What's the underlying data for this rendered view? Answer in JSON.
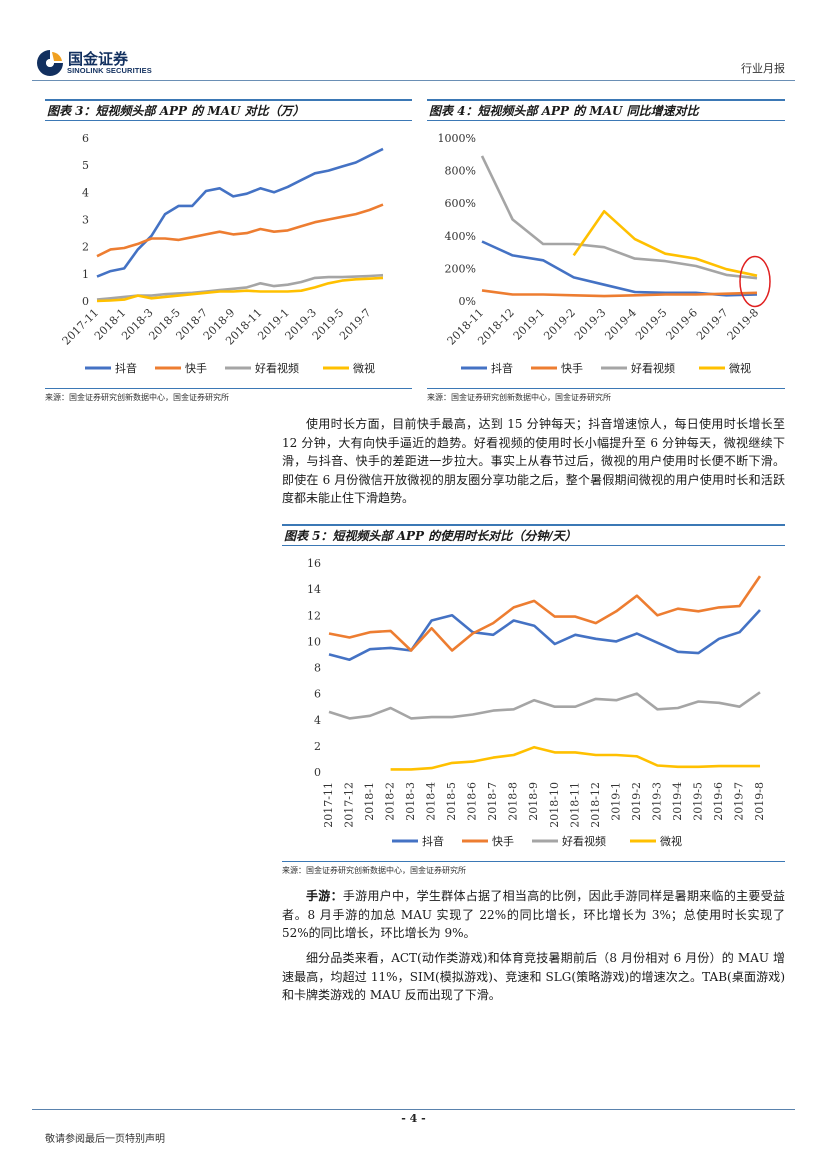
{
  "header": {
    "logo_cn": "国金证券",
    "logo_en": "SINOLINK SECURITIES",
    "report_type": "行业月报"
  },
  "footer": {
    "page_number": "- 4 -",
    "disclaimer": "敬请参阅最后一页特别声明"
  },
  "colors": {
    "blue": "#4472C4",
    "orange": "#ED7D31",
    "gray": "#A5A5A5",
    "yellow": "#FFC000",
    "rule": "#3b78b5",
    "highlight": "#e02020"
  },
  "body": {
    "para1": "使用时长方面，目前快手最高，达到 15 分钟每天；抖音增速惊人，每日使用时长增长至 12 分钟，大有向快手逼近的趋势。好看视频的使用时长小幅提升至 6 分钟每天，微视继续下滑，与抖音、快手的差距进一步拉大。事实上从春节过后，微视的用户使用时长便不断下滑。即使在 6 月份微信开放微视的朋友圈分享功能之后，整个暑假期间微视的用户使用时长和活跃度都未能止住下滑趋势。",
    "para2_lead": "手游：",
    "para2": "手游用户中，学生群体占据了相当高的比例，因此手游同样是暑期来临的主要受益者。8 月手游的加总 MAU 实现了 22%的同比增长，环比增长为 3%；总使用时长实现了 52%的同比增长，环比增长为 9%。",
    "para3": "细分品类来看，ACT(动作类游戏)和体育竞技暑期前后（8 月份相对 6 月份）的 MAU 增速最高，均超过 11%，SIM(模拟游戏)、竞速和 SLG(策略游戏)的增速次之。TAB(桌面游戏)和卡牌类游戏的 MAU 反而出现了下滑。"
  },
  "chart_data": [
    {
      "id": "fig3",
      "type": "line",
      "title": "图表 3：短视频头部 APP 的 MAU 对比（万）",
      "source": "来源：国金证券研究创新数据中心，国金证券研究所",
      "x": [
        "2017-11",
        "2017-12",
        "2018-1",
        "2018-2",
        "2018-3",
        "2018-4",
        "2018-5",
        "2018-6",
        "2018-7",
        "2018-8",
        "2018-9",
        "2018-10",
        "2018-11",
        "2018-12",
        "2019-1",
        "2019-2",
        "2019-3",
        "2019-4",
        "2019-5",
        "2019-6",
        "2019-7",
        "2019-8"
      ],
      "x_tick_labels": [
        "2017-11",
        "2018-1",
        "2018-3",
        "2018-5",
        "2018-7",
        "2018-9",
        "2018-11",
        "2019-1",
        "2019-3",
        "2019-5",
        "2019-7"
      ],
      "ylim": [
        0,
        6
      ],
      "y_ticks": [
        "0",
        "1",
        "2",
        "3",
        "4",
        "5",
        "6"
      ],
      "series": [
        {
          "name": "抖音",
          "color": "#4472C4",
          "values": [
            0.9,
            1.1,
            1.2,
            1.9,
            2.4,
            3.2,
            3.5,
            3.5,
            4.05,
            4.15,
            3.85,
            3.95,
            4.15,
            4.0,
            4.2,
            4.45,
            4.7,
            4.8,
            4.95,
            5.1,
            5.35,
            5.6
          ]
        },
        {
          "name": "快手",
          "color": "#ED7D31",
          "values": [
            1.65,
            1.9,
            1.95,
            2.1,
            2.3,
            2.3,
            2.25,
            2.35,
            2.45,
            2.55,
            2.45,
            2.5,
            2.65,
            2.55,
            2.6,
            2.75,
            2.9,
            3.0,
            3.1,
            3.2,
            3.35,
            3.55
          ]
        },
        {
          "name": "好看视频",
          "color": "#A5A5A5",
          "values": [
            0.05,
            0.1,
            0.15,
            0.2,
            0.2,
            0.25,
            0.28,
            0.3,
            0.35,
            0.4,
            0.45,
            0.5,
            0.65,
            0.55,
            0.6,
            0.7,
            0.85,
            0.88,
            0.88,
            0.9,
            0.92,
            0.95
          ]
        },
        {
          "name": "微视",
          "color": "#FFC000",
          "values": [
            0.0,
            0.02,
            0.05,
            0.2,
            0.1,
            0.15,
            0.2,
            0.25,
            0.3,
            0.35,
            0.35,
            0.38,
            0.35,
            0.35,
            0.35,
            0.38,
            0.5,
            0.65,
            0.75,
            0.8,
            0.82,
            0.85
          ]
        }
      ]
    },
    {
      "id": "fig4",
      "type": "line",
      "title": "图表 4：短视频头部 APP 的 MAU 同比增速对比",
      "source": "来源：国金证券研究创新数据中心，国金证券研究所",
      "x": [
        "2018-11",
        "2018-12",
        "2019-1",
        "2019-2",
        "2019-3",
        "2019-4",
        "2019-5",
        "2019-6",
        "2019-7",
        "2019-8"
      ],
      "ylim": [
        0,
        1000
      ],
      "y_ticks": [
        "0%",
        "200%",
        "400%",
        "600%",
        "800%",
        "1000%"
      ],
      "annotation": "red circle around 2019-8 values",
      "series": [
        {
          "name": "抖音",
          "color": "#4472C4",
          "values": [
            365,
            280,
            250,
            145,
            100,
            55,
            50,
            50,
            35,
            40
          ]
        },
        {
          "name": "快手",
          "color": "#ED7D31",
          "values": [
            65,
            40,
            40,
            35,
            30,
            35,
            40,
            40,
            45,
            50
          ]
        },
        {
          "name": "好看视频",
          "color": "#A5A5A5",
          "values": [
            890,
            500,
            350,
            350,
            330,
            260,
            245,
            215,
            160,
            140
          ]
        },
        {
          "name": "微视",
          "color": "#FFC000",
          "values": [
            null,
            null,
            null,
            280,
            550,
            380,
            290,
            260,
            195,
            155
          ]
        }
      ]
    },
    {
      "id": "fig5",
      "type": "line",
      "title": "图表 5：短视频头部 APP 的使用时长对比（分钟/天）",
      "source": "来源：国金证券研究创新数据中心，国金证券研究所",
      "x": [
        "2017-11",
        "2017-12",
        "2018-1",
        "2018-2",
        "2018-3",
        "2018-4",
        "2018-5",
        "2018-6",
        "2018-7",
        "2018-8",
        "2018-9",
        "2018-10",
        "2018-11",
        "2018-12",
        "2019-1",
        "2019-2",
        "2019-3",
        "2019-4",
        "2019-5",
        "2019-6",
        "2019-7",
        "2019-8"
      ],
      "ylim": [
        0,
        16
      ],
      "y_ticks": [
        "0",
        "2",
        "4",
        "6",
        "8",
        "10",
        "12",
        "14",
        "16"
      ],
      "series": [
        {
          "name": "抖音",
          "color": "#4472C4",
          "values": [
            9.0,
            8.6,
            9.4,
            9.5,
            9.3,
            11.6,
            12.0,
            10.7,
            10.5,
            11.6,
            11.2,
            9.8,
            10.5,
            10.2,
            10.0,
            10.6,
            9.9,
            9.2,
            9.1,
            10.2,
            10.7,
            12.4
          ]
        },
        {
          "name": "快手",
          "color": "#ED7D31",
          "values": [
            10.6,
            10.3,
            10.7,
            10.8,
            9.3,
            11.0,
            9.3,
            10.6,
            11.4,
            12.6,
            13.1,
            11.9,
            11.9,
            11.4,
            12.3,
            13.5,
            12.0,
            12.5,
            12.3,
            12.6,
            12.7,
            15.0
          ]
        },
        {
          "name": "好看视频",
          "color": "#A5A5A5",
          "values": [
            4.6,
            4.1,
            4.3,
            4.9,
            4.1,
            4.2,
            4.2,
            4.4,
            4.7,
            4.8,
            5.5,
            5.0,
            5.0,
            5.6,
            5.5,
            6.0,
            4.8,
            4.9,
            5.4,
            5.3,
            5.0,
            6.1
          ]
        },
        {
          "name": "微视",
          "color": "#FFC000",
          "values": [
            null,
            null,
            null,
            0.2,
            0.2,
            0.3,
            0.7,
            0.8,
            1.1,
            1.3,
            1.9,
            1.5,
            1.5,
            1.3,
            1.3,
            1.2,
            0.5,
            0.4,
            0.4,
            0.45,
            0.45,
            0.45
          ]
        }
      ]
    }
  ]
}
